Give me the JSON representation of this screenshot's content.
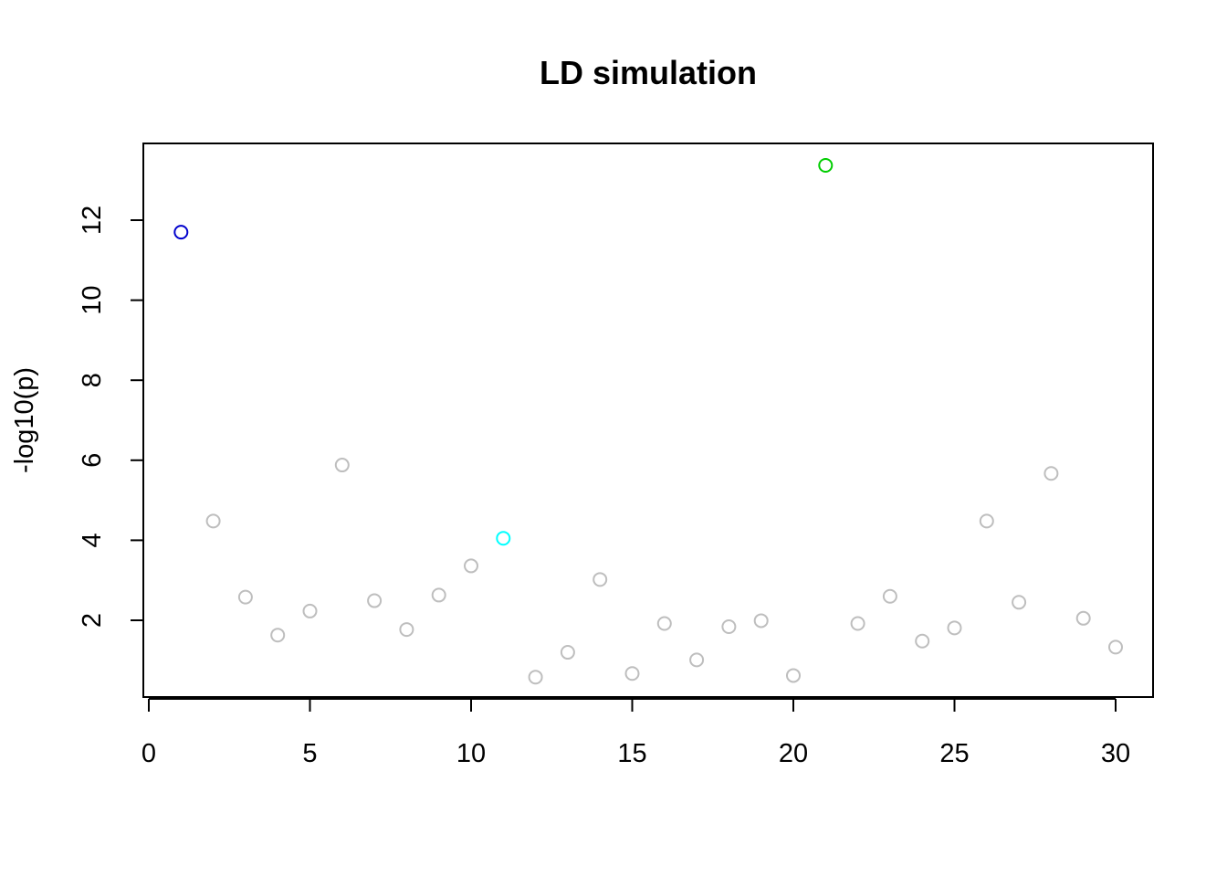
{
  "chart_data": {
    "type": "scatter",
    "title": "LD simulation",
    "xlabel": "",
    "ylabel": "-log10(p)",
    "xlim": [
      0,
      30
    ],
    "ylim": [
      0.5,
      13.5
    ],
    "x_ticks": [
      0,
      5,
      10,
      15,
      20,
      25,
      30
    ],
    "y_ticks": [
      2,
      4,
      6,
      8,
      10,
      12
    ],
    "grid": false,
    "points": [
      {
        "x": 1,
        "y": 11.7,
        "color": "#0000cd"
      },
      {
        "x": 2,
        "y": 4.48,
        "color": "#bebebe"
      },
      {
        "x": 3,
        "y": 2.58,
        "color": "#bebebe"
      },
      {
        "x": 4,
        "y": 1.63,
        "color": "#bebebe"
      },
      {
        "x": 5,
        "y": 2.23,
        "color": "#bebebe"
      },
      {
        "x": 6,
        "y": 5.88,
        "color": "#bebebe"
      },
      {
        "x": 7,
        "y": 2.49,
        "color": "#bebebe"
      },
      {
        "x": 8,
        "y": 1.77,
        "color": "#bebebe"
      },
      {
        "x": 9,
        "y": 2.63,
        "color": "#bebebe"
      },
      {
        "x": 10,
        "y": 3.36,
        "color": "#bebebe"
      },
      {
        "x": 11,
        "y": 4.05,
        "color": "#00ffff"
      },
      {
        "x": 12,
        "y": 0.58,
        "color": "#bebebe"
      },
      {
        "x": 13,
        "y": 1.2,
        "color": "#bebebe"
      },
      {
        "x": 14,
        "y": 3.02,
        "color": "#bebebe"
      },
      {
        "x": 15,
        "y": 0.67,
        "color": "#bebebe"
      },
      {
        "x": 16,
        "y": 1.92,
        "color": "#bebebe"
      },
      {
        "x": 17,
        "y": 1.01,
        "color": "#bebebe"
      },
      {
        "x": 18,
        "y": 1.84,
        "color": "#bebebe"
      },
      {
        "x": 19,
        "y": 1.99,
        "color": "#bebebe"
      },
      {
        "x": 20,
        "y": 0.62,
        "color": "#bebebe"
      },
      {
        "x": 21,
        "y": 13.37,
        "color": "#00cd00"
      },
      {
        "x": 22,
        "y": 1.92,
        "color": "#bebebe"
      },
      {
        "x": 23,
        "y": 2.6,
        "color": "#bebebe"
      },
      {
        "x": 24,
        "y": 1.48,
        "color": "#bebebe"
      },
      {
        "x": 25,
        "y": 1.81,
        "color": "#bebebe"
      },
      {
        "x": 26,
        "y": 4.48,
        "color": "#bebebe"
      },
      {
        "x": 27,
        "y": 2.45,
        "color": "#bebebe"
      },
      {
        "x": 28,
        "y": 5.67,
        "color": "#bebebe"
      },
      {
        "x": 29,
        "y": 2.05,
        "color": "#bebebe"
      },
      {
        "x": 30,
        "y": 1.33,
        "color": "#bebebe"
      }
    ]
  }
}
